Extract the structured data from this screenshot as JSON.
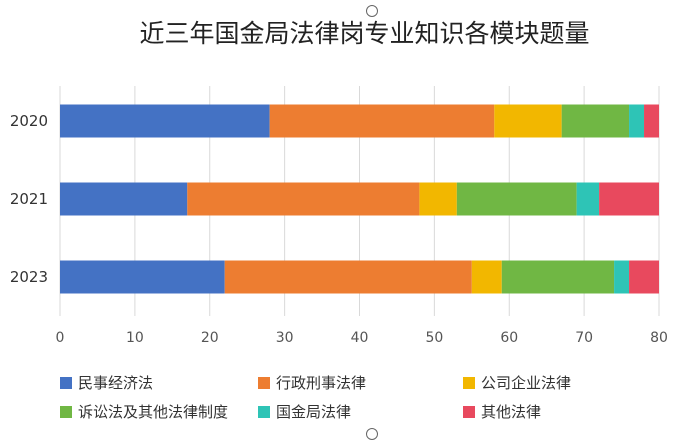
{
  "chart_data": {
    "type": "bar",
    "orientation": "horizontal",
    "stacked": true,
    "title": "近三年国金局法律岗专业知识各模块题量",
    "categories": [
      "2020",
      "2021",
      "2023"
    ],
    "series": [
      {
        "name": "民事经济法",
        "color": "#4472C4",
        "values": [
          28,
          17,
          22
        ]
      },
      {
        "name": "行政刑事法律",
        "color": "#ED7D31",
        "values": [
          30,
          31,
          33
        ]
      },
      {
        "name": "公司企业法律",
        "color": "#F2B700",
        "values": [
          9,
          5,
          4
        ]
      },
      {
        "name": "诉讼法及其他法律制度",
        "color": "#70B744",
        "values": [
          9,
          16,
          15
        ]
      },
      {
        "name": "国金局法律",
        "color": "#2EC4B6",
        "values": [
          2,
          3,
          2
        ]
      },
      {
        "name": "其他法律",
        "color": "#E8495E",
        "values": [
          2,
          8,
          4
        ]
      }
    ],
    "xlim": [
      0,
      80
    ],
    "xticks": [
      0,
      10,
      20,
      30,
      40,
      50,
      60,
      70,
      80
    ],
    "grid": true,
    "legend": "bottom"
  }
}
